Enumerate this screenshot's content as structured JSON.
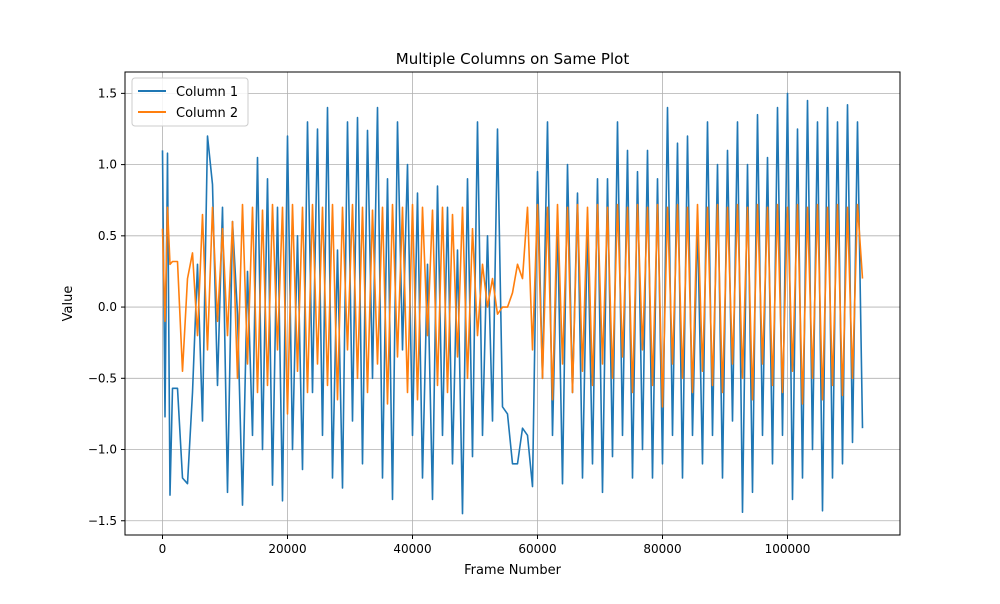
{
  "chart_data": {
    "type": "line",
    "title": "Multiple Columns on Same Plot",
    "xlabel": "Frame Number",
    "ylabel": "Value",
    "xlim": [
      -6000,
      118000
    ],
    "ylim": [
      -1.6,
      1.65
    ],
    "grid": true,
    "legend_position": "top-left",
    "x_ticks": [
      0,
      20000,
      40000,
      60000,
      80000,
      100000
    ],
    "x_tick_labels": [
      "0",
      "20000",
      "40000",
      "60000",
      "80000",
      "100000"
    ],
    "y_ticks": [
      -1.5,
      -1.0,
      -0.5,
      0.0,
      0.5,
      1.0,
      1.5
    ],
    "y_tick_labels": [
      "−1.5",
      "−1.0",
      "−0.5",
      "0.0",
      "0.5",
      "1.0",
      "1.5"
    ],
    "series": [
      {
        "name": "Column 1",
        "color": "#1f77b4",
        "x": [
          0,
          400,
          800,
          1200,
          1600,
          2400,
          3200,
          4000,
          4800,
          5600,
          6400,
          7200,
          8000,
          8800,
          9600,
          10400,
          11200,
          12000,
          12800,
          13600,
          14400,
          15200,
          16000,
          16800,
          17600,
          18400,
          19200,
          20000,
          20800,
          21600,
          22400,
          23200,
          24000,
          24800,
          25600,
          26400,
          27200,
          28000,
          28800,
          29600,
          30400,
          31200,
          32000,
          32800,
          33600,
          34400,
          35200,
          36000,
          36800,
          37600,
          38400,
          39200,
          40000,
          40800,
          41600,
          42400,
          43200,
          44000,
          44800,
          45600,
          46400,
          47200,
          48000,
          48800,
          49600,
          50400,
          51200,
          52000,
          52800,
          53600,
          54400,
          55200,
          56000,
          56800,
          57600,
          58400,
          59200,
          60000,
          60800,
          61600,
          62400,
          63200,
          64000,
          64800,
          65600,
          66400,
          67200,
          68000,
          68800,
          69600,
          70400,
          71200,
          72000,
          72800,
          73600,
          74400,
          75200,
          76000,
          76800,
          77600,
          78400,
          79200,
          80000,
          80800,
          81600,
          82400,
          83200,
          84000,
          84800,
          85600,
          86400,
          87200,
          88000,
          88800,
          89600,
          90400,
          91200,
          92000,
          92800,
          93600,
          94400,
          95200,
          96000,
          96800,
          97600,
          98400,
          99200,
          100000,
          100800,
          101600,
          102400,
          103200,
          104000,
          104800,
          105600,
          106400,
          107200,
          108000,
          108800,
          109600,
          110400,
          111200,
          112000
        ],
        "y": [
          1.1,
          -0.77,
          1.08,
          -1.32,
          -0.57,
          -0.57,
          -1.2,
          -1.24,
          -0.6,
          0.3,
          -0.8,
          1.2,
          0.86,
          -0.55,
          0.7,
          -1.3,
          0.6,
          -0.05,
          -1.39,
          0.25,
          -0.9,
          1.05,
          -1.0,
          0.9,
          -1.25,
          0.7,
          -1.36,
          1.2,
          -1.0,
          0.5,
          -1.14,
          1.3,
          -0.6,
          1.25,
          -0.9,
          1.4,
          -1.2,
          0.4,
          -1.27,
          1.3,
          -0.8,
          1.33,
          -1.1,
          1.24,
          -0.5,
          1.4,
          -1.2,
          0.9,
          -1.35,
          1.3,
          -0.3,
          1.0,
          -0.9,
          0.8,
          -1.2,
          0.3,
          -1.35,
          0.85,
          -0.9,
          0.7,
          -1.1,
          0.4,
          -1.45,
          0.9,
          -1.05,
          1.3,
          -0.9,
          0.5,
          -0.8,
          1.25,
          -0.7,
          -0.75,
          -1.1,
          -1.1,
          -0.85,
          -0.9,
          -1.26,
          0.95,
          -0.5,
          1.3,
          -0.9,
          0.6,
          -1.24,
          1.0,
          -0.6,
          0.8,
          -1.2,
          0.6,
          -1.1,
          0.9,
          -1.3,
          0.9,
          -1.05,
          1.3,
          -0.9,
          1.1,
          -1.2,
          0.95,
          -1.0,
          1.1,
          -1.2,
          0.9,
          -1.1,
          1.4,
          -0.9,
          1.15,
          -1.2,
          1.2,
          -0.9,
          0.6,
          -1.1,
          1.3,
          -0.9,
          1.0,
          -1.2,
          1.1,
          -0.8,
          1.3,
          -1.44,
          1.0,
          -1.3,
          1.35,
          -0.9,
          1.05,
          -1.1,
          1.4,
          -0.9,
          1.5,
          -1.35,
          1.25,
          -1.2,
          1.45,
          -1.0,
          1.3,
          -1.43,
          1.4,
          -1.2,
          1.3,
          -1.1,
          1.42,
          -0.95,
          1.3,
          -0.85
        ]
      },
      {
        "name": "Column 2",
        "color": "#ff7f0e",
        "x": [
          0,
          400,
          800,
          1200,
          1600,
          2400,
          3200,
          4000,
          4800,
          5600,
          6400,
          7200,
          8000,
          8800,
          9600,
          10400,
          11200,
          12000,
          12800,
          13600,
          14400,
          15200,
          16000,
          16800,
          17600,
          18400,
          19200,
          20000,
          20800,
          21600,
          22400,
          23200,
          24000,
          24800,
          25600,
          26400,
          27200,
          28000,
          28800,
          29600,
          30400,
          31200,
          32000,
          32800,
          33600,
          34400,
          35200,
          36000,
          36800,
          37600,
          38400,
          39200,
          40000,
          40800,
          41600,
          42400,
          43200,
          44000,
          44800,
          45600,
          46400,
          47200,
          48000,
          48800,
          49600,
          50400,
          51200,
          52000,
          52800,
          53600,
          54400,
          55200,
          56000,
          56800,
          57600,
          58400,
          59200,
          60000,
          60800,
          61600,
          62400,
          63200,
          64000,
          64800,
          65600,
          66400,
          67200,
          68000,
          68800,
          69600,
          70400,
          71200,
          72000,
          72800,
          73600,
          74400,
          75200,
          76000,
          76800,
          77600,
          78400,
          79200,
          80000,
          80800,
          81600,
          82400,
          83200,
          84000,
          84800,
          85600,
          86400,
          87200,
          88000,
          88800,
          89600,
          90400,
          91200,
          92000,
          92800,
          93600,
          94400,
          95200,
          96000,
          96800,
          97600,
          98400,
          99200,
          100000,
          100800,
          101600,
          102400,
          103200,
          104000,
          104800,
          105600,
          106400,
          107200,
          108000,
          108800,
          109600,
          110400,
          111200,
          112000
        ],
        "y": [
          0.55,
          -0.1,
          0.7,
          0.3,
          0.32,
          0.32,
          -0.45,
          0.2,
          0.38,
          -0.2,
          0.65,
          -0.3,
          0.7,
          -0.1,
          0.55,
          -0.2,
          0.6,
          -0.5,
          0.72,
          -0.4,
          0.7,
          -0.6,
          0.68,
          -0.55,
          0.72,
          -0.3,
          0.7,
          -0.75,
          0.72,
          -0.45,
          0.7,
          -0.6,
          0.72,
          -0.4,
          0.7,
          -0.55,
          0.72,
          -0.65,
          0.7,
          -0.3,
          0.72,
          -0.5,
          0.7,
          -0.6,
          0.68,
          -0.4,
          0.7,
          -0.68,
          0.72,
          -0.35,
          0.7,
          -0.6,
          0.72,
          -0.65,
          0.7,
          -0.2,
          0.68,
          -0.55,
          0.7,
          -0.6,
          0.65,
          -0.35,
          0.7,
          -0.5,
          0.55,
          -0.2,
          0.3,
          0.0,
          0.2,
          -0.05,
          0.0,
          0.0,
          0.1,
          0.3,
          0.2,
          0.7,
          -0.3,
          0.72,
          -0.5,
          0.7,
          -0.65,
          0.72,
          -0.4,
          0.7,
          -0.6,
          0.72,
          -0.45,
          0.7,
          -0.55,
          0.72,
          -0.4,
          0.7,
          -0.5,
          0.72,
          -0.35,
          0.7,
          -0.6,
          0.72,
          -0.3,
          0.7,
          -0.55,
          0.72,
          -0.7,
          0.7,
          -0.4,
          0.72,
          -0.5,
          0.7,
          -0.6,
          0.72,
          -0.45,
          0.7,
          -0.55,
          0.72,
          -0.6,
          0.7,
          -0.4,
          0.72,
          -0.5,
          0.7,
          -0.65,
          0.72,
          -0.4,
          0.7,
          -0.55,
          0.72,
          -0.6,
          0.7,
          -0.45,
          0.72,
          -0.68,
          0.7,
          -0.5,
          0.72,
          -0.65,
          0.7,
          -0.55,
          0.72,
          -0.62,
          0.7,
          -0.5,
          0.72,
          0.2
        ]
      }
    ]
  }
}
